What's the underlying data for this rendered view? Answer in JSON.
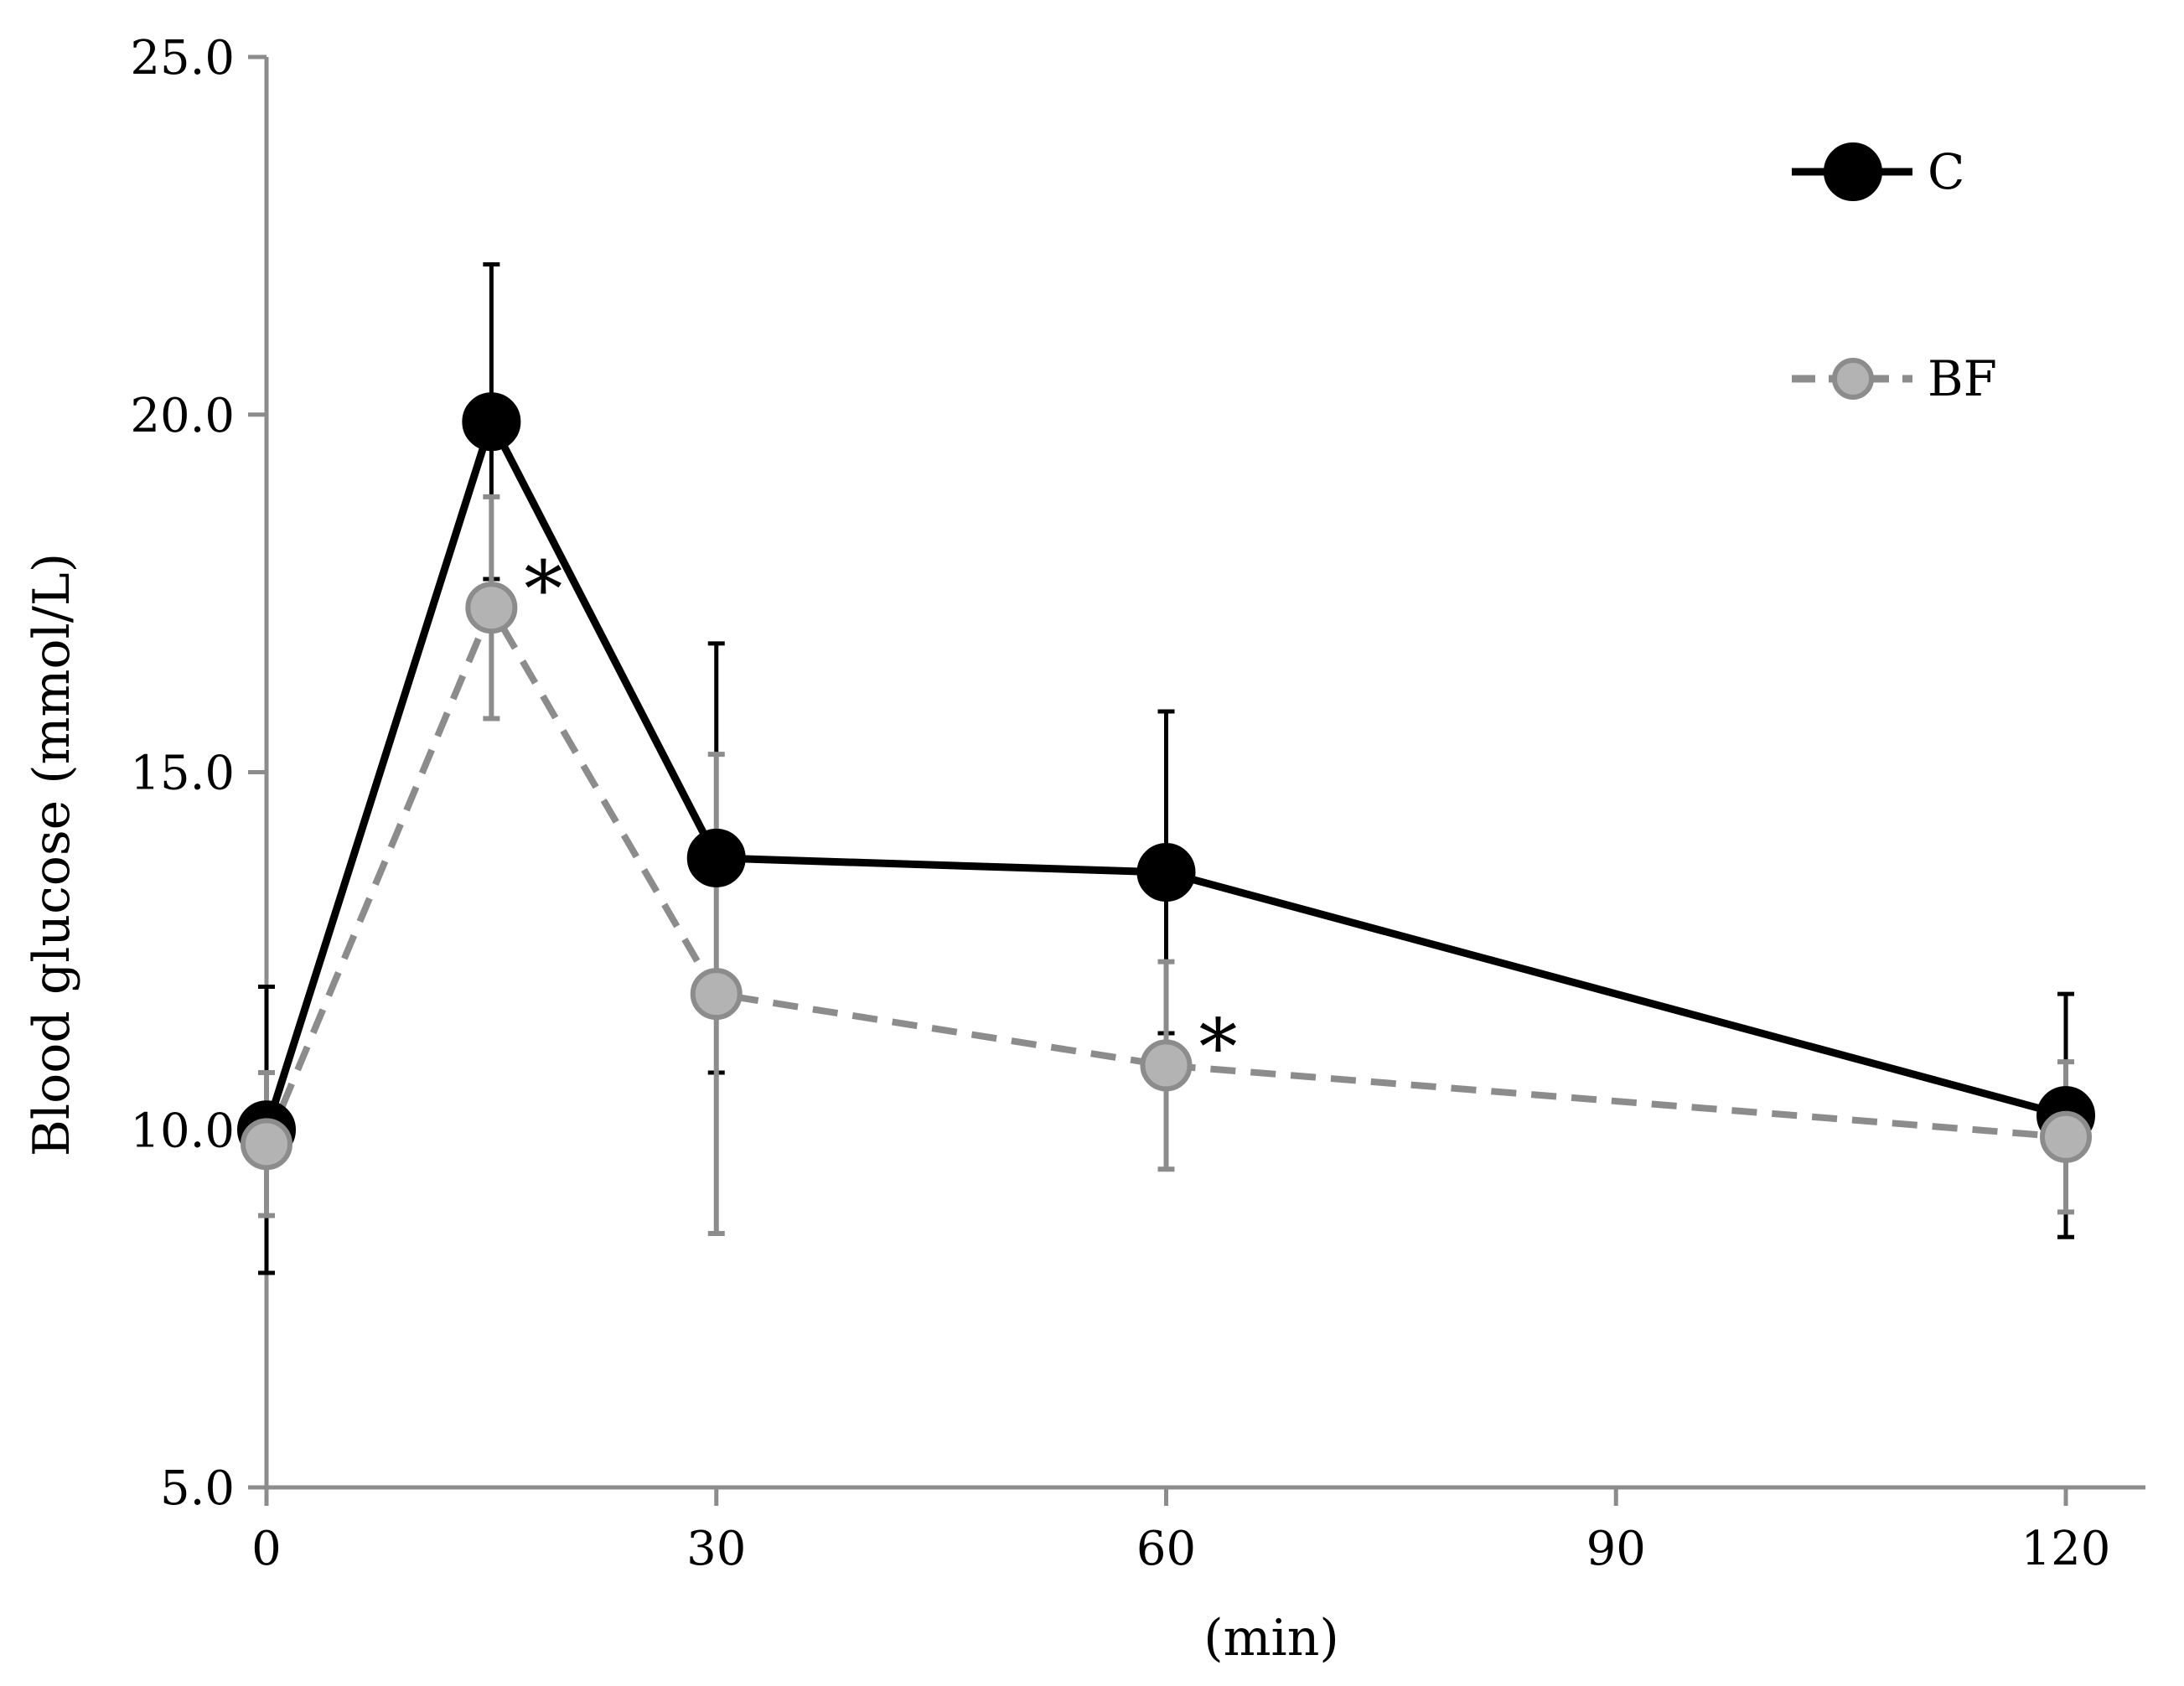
{
  "chart_data": {
    "type": "line",
    "title": "",
    "xlabel": "(min)",
    "ylabel": "Blood glucose (mmol/L)",
    "xlim": [
      0,
      120
    ],
    "ylim": [
      5.0,
      25.0
    ],
    "x_ticks": [
      0,
      30,
      60,
      90,
      120
    ],
    "x_tick_labels": [
      "0",
      "30",
      "60",
      "90",
      "120"
    ],
    "y_ticks": [
      5.0,
      10.0,
      15.0,
      20.0,
      25.0
    ],
    "y_tick_labels": [
      "5.0",
      "10.0",
      "15.0",
      "20.0",
      "25.0"
    ],
    "grid": false,
    "legend_position": "top-right",
    "series": [
      {
        "name": "C",
        "color": "#000000",
        "line_style": "solid",
        "x": [
          0,
          15,
          30,
          60,
          120
        ],
        "values": [
          10.0,
          19.9,
          13.8,
          13.6,
          10.2
        ],
        "error": [
          2.0,
          2.2,
          3.0,
          2.25,
          1.7
        ]
      },
      {
        "name": "BF",
        "color": "#8c8c8c",
        "line_style": "dashed",
        "x": [
          0,
          15,
          30,
          60,
          120
        ],
        "values": [
          9.8,
          17.3,
          11.9,
          10.9,
          9.9
        ],
        "error": [
          1.0,
          1.55,
          3.35,
          1.45,
          1.05
        ]
      }
    ],
    "annotations": [
      {
        "text": "*",
        "x": 15,
        "y": 17.3
      },
      {
        "text": "*",
        "x": 60,
        "y": 10.9
      }
    ]
  }
}
